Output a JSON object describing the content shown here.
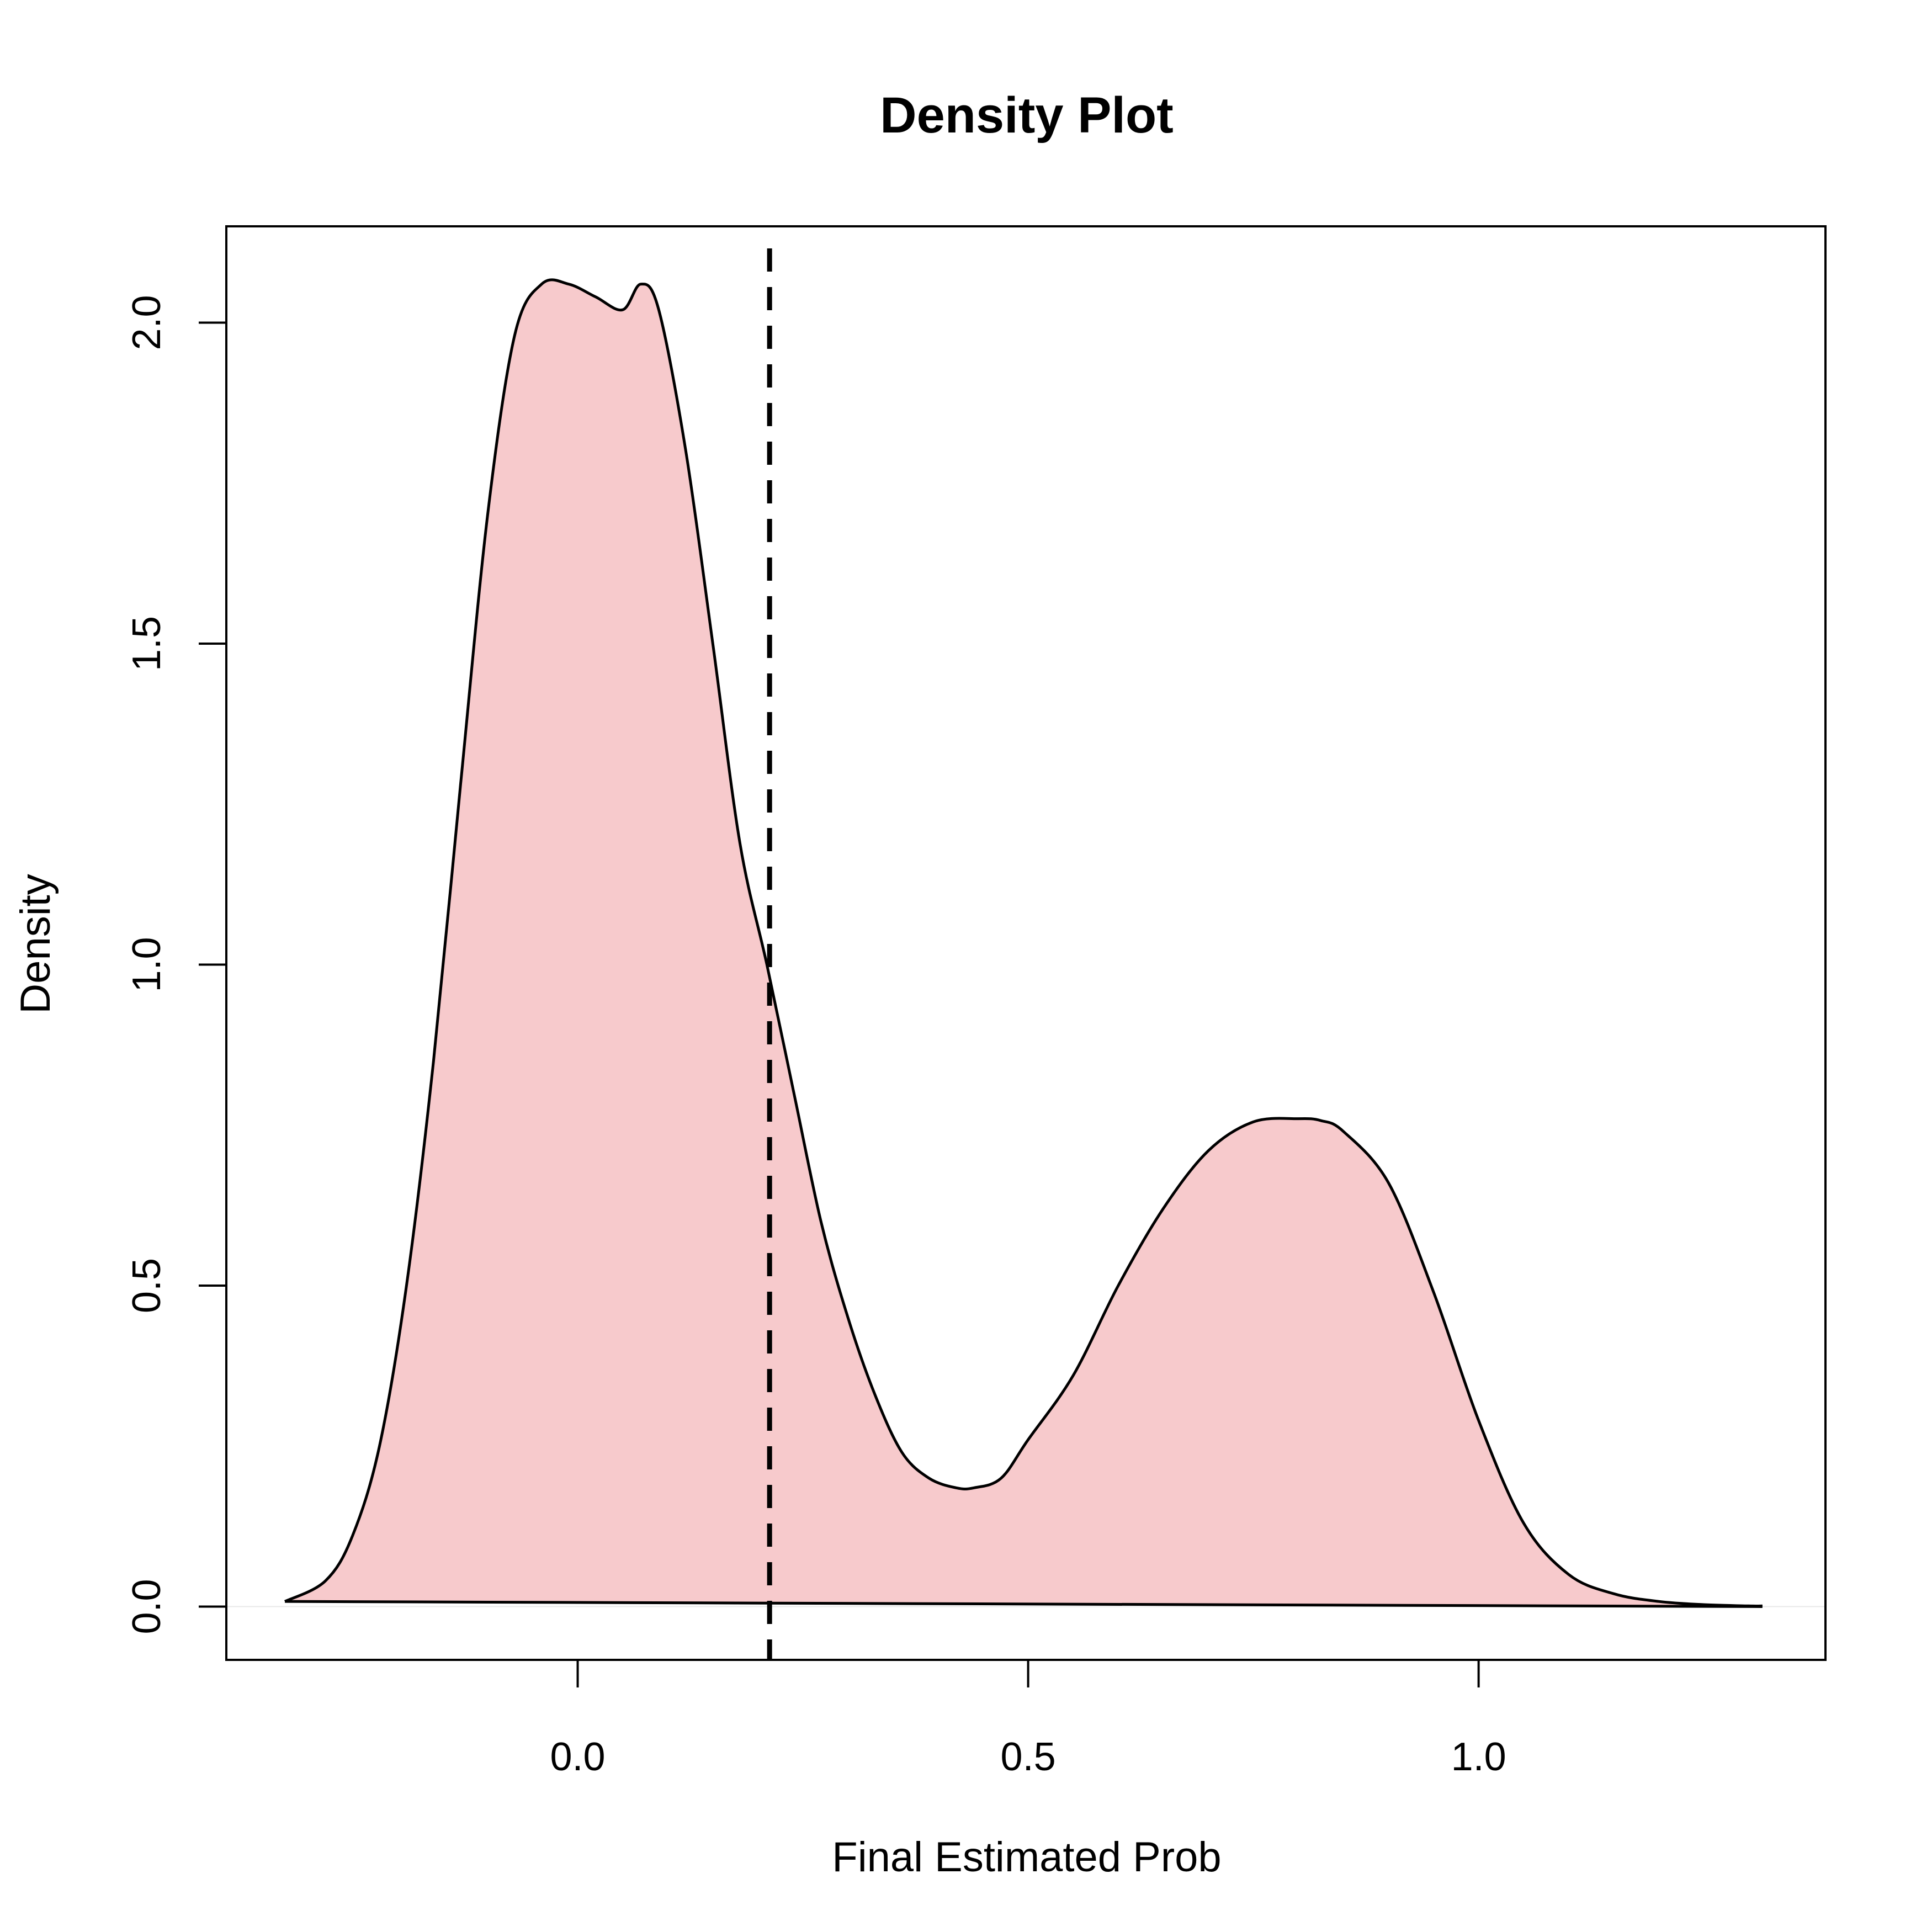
{
  "chart_data": {
    "type": "area",
    "title": "Density Plot",
    "xlabel": "Final Estimated Prob",
    "ylabel": "Density",
    "xlim": [
      -0.39,
      1.385
    ],
    "ylim": [
      -0.083,
      2.15
    ],
    "x_ticks": [
      {
        "value": 0.0,
        "label": "0.0"
      },
      {
        "value": 0.5,
        "label": "0.5"
      },
      {
        "value": 1.0,
        "label": "1.0"
      }
    ],
    "y_ticks": [
      {
        "value": 0.0,
        "label": "0.0"
      },
      {
        "value": 0.5,
        "label": "0.5"
      },
      {
        "value": 1.0,
        "label": "1.0"
      },
      {
        "value": 1.5,
        "label": "1.5"
      },
      {
        "value": 2.0,
        "label": "2.0"
      }
    ],
    "series": [
      {
        "fill_color": "#f7cacc",
        "line_color": "#000000",
        "x": [
          -0.325,
          -0.28,
          -0.25,
          -0.22,
          -0.19,
          -0.16,
          -0.13,
          -0.1,
          -0.07,
          -0.04,
          -0.01,
          0.02,
          0.05,
          0.07,
          0.09,
          0.12,
          0.15,
          0.18,
          0.21,
          0.24,
          0.27,
          0.3,
          0.33,
          0.36,
          0.39,
          0.42,
          0.44,
          0.47,
          0.5,
          0.55,
          0.6,
          0.65,
          0.7,
          0.75,
          0.8,
          0.825,
          0.85,
          0.9,
          0.95,
          1.0,
          1.05,
          1.1,
          1.15,
          1.2,
          1.25,
          1.3,
          1.315
        ],
        "y": [
          0.008,
          0.04,
          0.11,
          0.25,
          0.5,
          0.85,
          1.28,
          1.7,
          1.98,
          2.06,
          2.06,
          2.04,
          2.02,
          2.06,
          2.02,
          1.8,
          1.5,
          1.19,
          1.0,
          0.8,
          0.6,
          0.45,
          0.33,
          0.24,
          0.2,
          0.185,
          0.185,
          0.2,
          0.26,
          0.36,
          0.5,
          0.62,
          0.71,
          0.755,
          0.76,
          0.757,
          0.74,
          0.66,
          0.49,
          0.29,
          0.13,
          0.05,
          0.02,
          0.008,
          0.003,
          0.001,
          0.001
        ]
      }
    ],
    "baseline": {
      "x": [
        -0.325,
        1.315
      ],
      "y": [
        0.008,
        0.0
      ]
    },
    "vline": {
      "x": 0.213,
      "style": "dashed",
      "color": "#000000"
    }
  }
}
